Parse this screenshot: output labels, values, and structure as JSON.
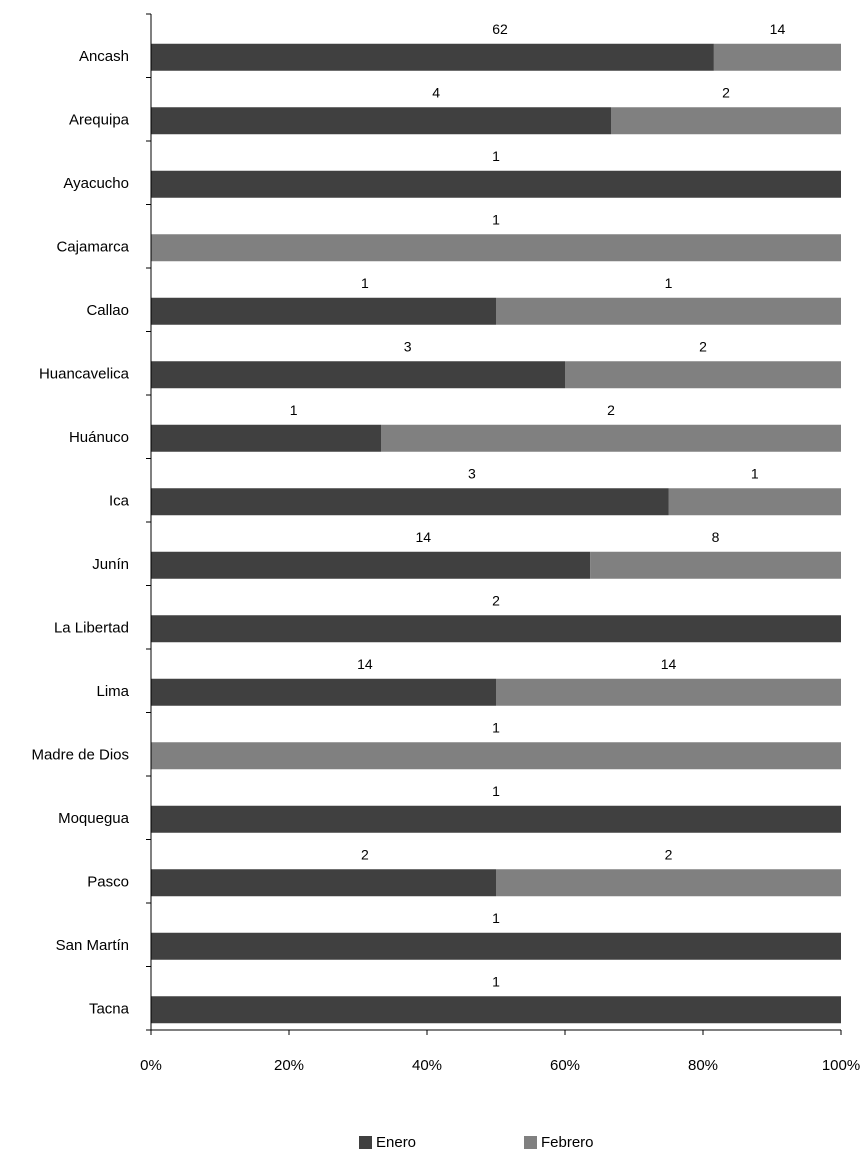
{
  "chart_data": {
    "type": "bar",
    "orientation": "horizontal",
    "stacking": "percent",
    "categories": [
      "Ancash",
      "Arequipa",
      "Ayacucho",
      "Cajamarca",
      "Callao",
      "Huancavelica",
      "Huánuco",
      "Ica",
      "Junín",
      "La Libertad",
      "Lima",
      "Madre de Dios",
      "Moquegua",
      "Pasco",
      "San Martín",
      "Tacna"
    ],
    "series": [
      {
        "name": "Enero",
        "color": "#404040",
        "values": [
          62,
          4,
          1,
          0,
          1,
          3,
          1,
          3,
          14,
          2,
          14,
          0,
          1,
          2,
          1,
          1
        ]
      },
      {
        "name": "Febrero",
        "color": "#808080",
        "values": [
          14,
          2,
          0,
          1,
          1,
          2,
          2,
          1,
          8,
          0,
          14,
          1,
          0,
          2,
          0,
          0
        ]
      }
    ],
    "xlim": [
      0,
      100
    ],
    "x_ticks": [
      "0%",
      "20%",
      "40%",
      "60%",
      "80%",
      "100%"
    ],
    "grid": false,
    "legend_position": "bottom",
    "title": "",
    "xlabel": "",
    "ylabel": ""
  }
}
